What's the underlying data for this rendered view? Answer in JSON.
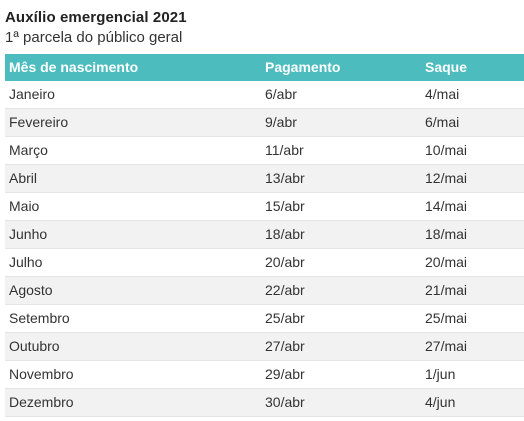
{
  "colors": {
    "header_bg": "#4cbcbf",
    "header_text": "#ffffff",
    "stripe": "#f2f2f2",
    "text": "#333333"
  },
  "chart_data": {
    "type": "table",
    "title": "Auxílio emergencial 2021",
    "subtitle": "1ª parcela do público geral",
    "columns": [
      "Mês de nascimento",
      "Pagamento",
      "Saque"
    ],
    "rows": [
      [
        "Janeiro",
        "6/abr",
        "4/mai"
      ],
      [
        "Fevereiro",
        "9/abr",
        "6/mai"
      ],
      [
        "Março",
        "11/abr",
        "10/mai"
      ],
      [
        "Abril",
        "13/abr",
        "12/mai"
      ],
      [
        "Maio",
        "15/abr",
        "14/mai"
      ],
      [
        "Junho",
        "18/abr",
        "18/mai"
      ],
      [
        "Julho",
        "20/abr",
        "20/mai"
      ],
      [
        "Agosto",
        "22/abr",
        "21/mai"
      ],
      [
        "Setembro",
        "25/abr",
        "25/mai"
      ],
      [
        "Outubro",
        "27/abr",
        "27/mai"
      ],
      [
        "Novembro",
        "29/abr",
        "1/jun"
      ],
      [
        "Dezembro",
        "30/abr",
        "4/jun"
      ]
    ]
  }
}
